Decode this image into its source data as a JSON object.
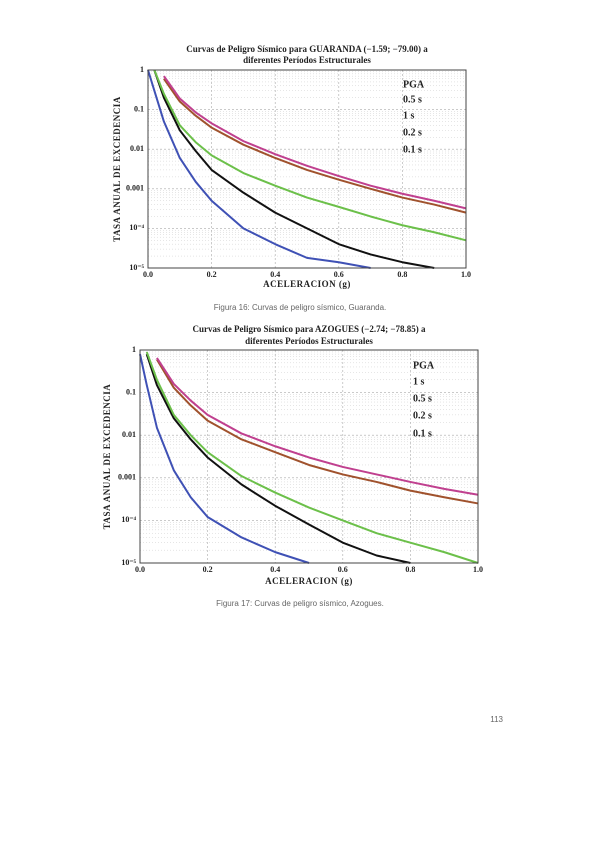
{
  "charts": [
    {
      "chart_data": {
        "type": "line",
        "title_lines": [
          "Curvas de Peligro Sísmico para GUARANDA (−1.59; −79.00) a",
          "diferentes Períodos Estructurales"
        ],
        "x_label": "ACELERACION (g)",
        "y_label": "TASA ANUAL DE EXCEDENCIA",
        "x": [
          0.0,
          0.02,
          0.05,
          0.1,
          0.15,
          0.2,
          0.3,
          0.4,
          0.5,
          0.6,
          0.7,
          0.8,
          0.9,
          1.0
        ],
        "xlim": [
          0,
          1
        ],
        "xticks": [
          {
            "value": 0,
            "label": "0.0"
          },
          {
            "value": 0.2,
            "label": "0.2"
          },
          {
            "value": 0.4,
            "label": "0.4"
          },
          {
            "value": 0.6,
            "label": "0.6"
          },
          {
            "value": 0.8,
            "label": "0.8"
          },
          {
            "value": 1,
            "label": "1.0"
          }
        ],
        "ylim": [
          1e-05,
          1
        ],
        "ylog": true,
        "grid": true,
        "yticks": [
          1,
          0.1,
          0.01,
          0.001,
          {
            "value": 0.0001,
            "label": "10⁻⁴"
          },
          {
            "value": 1e-05,
            "label": "10⁻⁵"
          }
        ],
        "series": [
          {
            "name": "PGA",
            "color": "#111111",
            "values": [
              null,
              1,
              0.2,
              0.03,
              0.009,
              0.003,
              0.0008,
              0.00025,
              0.0001,
              4e-05,
              2.2e-05,
              1.4e-05,
              1e-05,
              null
            ]
          },
          {
            "name": "0.5 s",
            "color": "#6cc04a",
            "values": [
              null,
              1,
              0.25,
              0.04,
              0.015,
              0.007,
              0.0025,
              0.0012,
              0.0006,
              0.00035,
              0.0002,
              0.00012,
              8e-05,
              5e-05
            ]
          },
          {
            "name": "1 s",
            "color": "#3f51b5",
            "values": [
              1,
              0.3,
              0.05,
              0.006,
              0.0015,
              0.0005,
              0.0001,
              4e-05,
              1.8e-05,
              1.4e-05,
              1e-05,
              null,
              null,
              null
            ]
          },
          {
            "name": "0.2 s",
            "color": "#a0522d",
            "values": [
              null,
              null,
              0.6,
              0.16,
              0.07,
              0.035,
              0.013,
              0.006,
              0.003,
              0.0017,
              0.001,
              0.0006,
              0.0004,
              0.00025
            ]
          },
          {
            "name": "0.1 s",
            "color": "#c0408f",
            "values": [
              null,
              null,
              0.7,
              0.19,
              0.085,
              0.045,
              0.016,
              0.0075,
              0.0038,
              0.0021,
              0.0012,
              0.00075,
              0.0005,
              0.00032
            ]
          }
        ]
      }
    },
    {
      "chart_data": {
        "type": "line",
        "title_lines": [
          "Curvas de Peligro Sísmico para AZOGUES (−2.74; −78.85) a",
          "diferentes Períodos Estructurales"
        ],
        "x_label": "ACELERACION (g)",
        "y_label": "TASA ANUAL DE EXCEDENCIA",
        "x": [
          0.0,
          0.02,
          0.05,
          0.1,
          0.15,
          0.2,
          0.3,
          0.4,
          0.5,
          0.6,
          0.7,
          0.8,
          0.9,
          1.0
        ],
        "xlim": [
          0,
          1
        ],
        "xticks": [
          {
            "value": 0,
            "label": "0.0"
          },
          {
            "value": 0.2,
            "label": "0.2"
          },
          {
            "value": 0.4,
            "label": "0.4"
          },
          {
            "value": 0.6,
            "label": "0.6"
          },
          {
            "value": 0.8,
            "label": "0.8"
          },
          {
            "value": 1,
            "label": "1.0"
          }
        ],
        "ylim": [
          1e-05,
          1
        ],
        "ylog": true,
        "grid": true,
        "yticks": [
          1,
          0.1,
          0.01,
          0.001,
          {
            "value": 0.0001,
            "label": "10⁻⁴"
          },
          {
            "value": 1e-05,
            "label": "10⁻⁵"
          }
        ],
        "series": [
          {
            "name": "PGA",
            "color": "#111111",
            "values": [
              null,
              0.8,
              0.15,
              0.025,
              0.008,
              0.003,
              0.0007,
              0.00022,
              8e-05,
              3e-05,
              1.5e-05,
              1e-05,
              null,
              null
            ]
          },
          {
            "name": "1 s",
            "color": "#3f51b5",
            "values": [
              0.8,
              0.15,
              0.015,
              0.0015,
              0.00035,
              0.00012,
              4e-05,
              1.8e-05,
              1e-05,
              null,
              null,
              null,
              null,
              null
            ]
          },
          {
            "name": "0.5 s",
            "color": "#6cc04a",
            "values": [
              null,
              0.9,
              0.2,
              0.03,
              0.01,
              0.004,
              0.0011,
              0.00045,
              0.0002,
              0.0001,
              5e-05,
              3e-05,
              1.8e-05,
              1e-05
            ]
          },
          {
            "name": "0.2 s",
            "color": "#a0522d",
            "values": [
              null,
              null,
              0.6,
              0.13,
              0.05,
              0.022,
              0.008,
              0.004,
              0.002,
              0.0012,
              0.0008,
              0.0005,
              0.00035,
              0.00025
            ]
          },
          {
            "name": "0.1 s",
            "color": "#c0408f",
            "values": [
              null,
              null,
              0.65,
              0.16,
              0.065,
              0.03,
              0.011,
              0.0055,
              0.003,
              0.0018,
              0.0012,
              0.0008,
              0.00055,
              0.0004
            ]
          }
        ]
      }
    }
  ],
  "captions": [
    "Figura 16: Curvas de peligro sísmico, Guaranda.",
    "Figura 17: Curvas de peligro sísmico, Azogues."
  ],
  "page_number": "113"
}
